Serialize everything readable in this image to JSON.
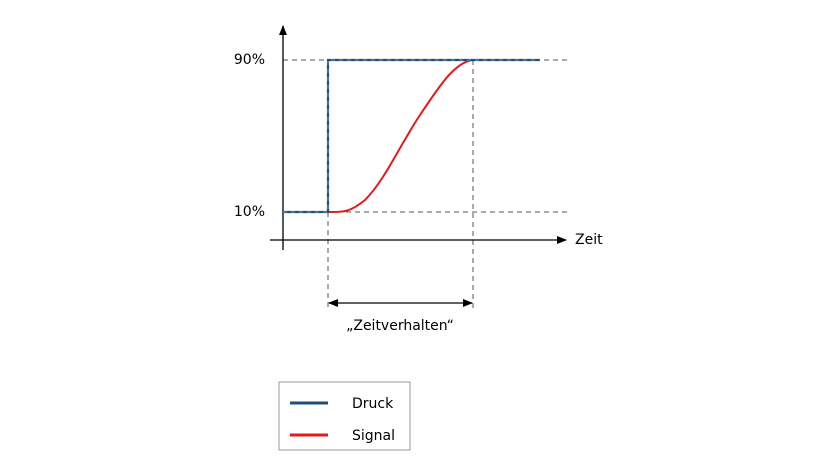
{
  "axis": {
    "y_labels": [
      "90%",
      "10%"
    ],
    "x_label": "Zeit"
  },
  "annotation": "„Zeitverhalten“",
  "legend": [
    {
      "label": "Druck",
      "color": "#1f4e79"
    },
    {
      "label": "Signal",
      "color": "#e3191c"
    }
  ]
}
